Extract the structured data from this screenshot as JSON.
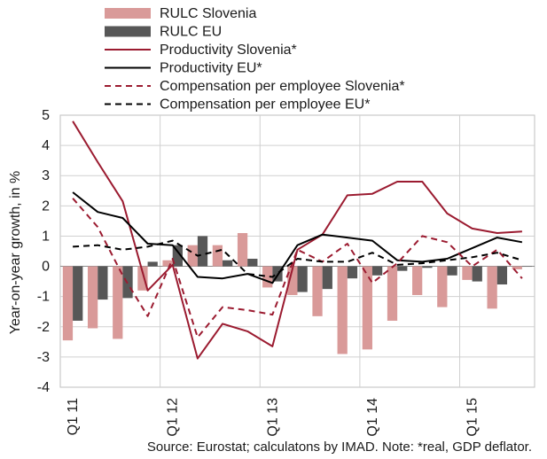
{
  "chart_data": {
    "type": "bar",
    "ylabel": "Year-on-year growth, in %",
    "ylim": [
      -4,
      5
    ],
    "yticks": [
      "5",
      "4",
      "3",
      "2",
      "1",
      "0",
      "-1",
      "-2",
      "-3",
      "-4"
    ],
    "yticks_values": [
      5,
      4,
      3,
      2,
      1,
      0,
      -1,
      -2,
      -3,
      -4
    ],
    "x_tick_labels": [
      {
        "index": 0,
        "label": "Q1 11"
      },
      {
        "index": 4,
        "label": "Q1 12"
      },
      {
        "index": 8,
        "label": "Q1 13"
      },
      {
        "index": 12,
        "label": "Q1 14"
      },
      {
        "index": 16,
        "label": "Q1 15"
      }
    ],
    "quarters": 19,
    "grid": true,
    "legend_position": "top",
    "bar_series": [
      {
        "name": "RULC Slovenia",
        "color": "#d99a99",
        "values": [
          -2.45,
          -2.05,
          -2.4,
          -0.8,
          0.2,
          0.7,
          0.7,
          1.1,
          -0.7,
          -0.95,
          -1.65,
          -2.9,
          -2.75,
          -1.8,
          -0.95,
          -1.35,
          -0.45,
          -1.4,
          -0.1
        ]
      },
      {
        "name": "RULC EU",
        "color": "#575757",
        "values": [
          -1.8,
          -1.1,
          -1.05,
          0.15,
          0.7,
          1.0,
          0.2,
          0.25,
          -0.5,
          -0.85,
          -0.75,
          -0.4,
          -0.3,
          -0.15,
          -0.05,
          -0.3,
          -0.5,
          -0.6,
          0.0
        ]
      }
    ],
    "line_series": [
      {
        "name": "Productivity Slovenia*",
        "color": "#9b1b30",
        "dash": false,
        "values": [
          4.8,
          3.45,
          2.15,
          -0.8,
          0.05,
          -3.05,
          -1.9,
          -2.15,
          -2.65,
          0.55,
          1.05,
          2.35,
          2.4,
          2.8,
          2.8,
          1.75,
          1.25,
          1.1,
          1.15
        ]
      },
      {
        "name": "Productivity EU*",
        "color": "#000000",
        "dash": false,
        "values": [
          2.45,
          1.8,
          1.6,
          0.75,
          0.7,
          -0.35,
          -0.4,
          -0.25,
          -0.55,
          0.7,
          1.05,
          0.95,
          0.85,
          0.2,
          0.15,
          0.25,
          0.6,
          0.95,
          0.8
        ]
      },
      {
        "name": "Compensation per employee Slovenia*",
        "color": "#9b1b30",
        "dash": true,
        "values": [
          2.25,
          1.3,
          -0.3,
          -1.65,
          0.25,
          -2.35,
          -1.35,
          -1.45,
          -1.6,
          0.55,
          0.15,
          0.75,
          -0.55,
          0.1,
          1.0,
          0.8,
          0.0,
          0.55,
          -0.4
        ]
      },
      {
        "name": "Compensation per employee EU*",
        "color": "#000000",
        "dash": true,
        "values": [
          0.65,
          0.7,
          0.55,
          0.65,
          0.85,
          0.35,
          0.55,
          -0.25,
          -0.35,
          0.25,
          0.15,
          0.15,
          0.45,
          0.05,
          0.1,
          0.2,
          0.3,
          0.45,
          0.2
        ]
      }
    ],
    "source": "Source: Eurostat; calculatons by IMAD. Note: *real, GDP deflator."
  }
}
